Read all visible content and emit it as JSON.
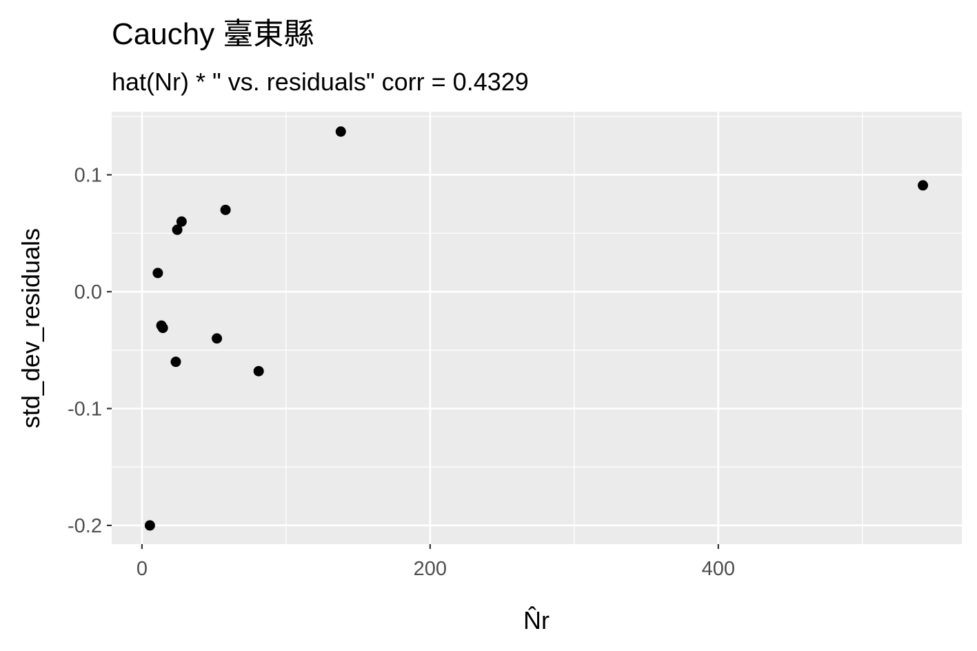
{
  "chart_data": {
    "type": "scatter",
    "title": "Cauchy 臺東縣",
    "subtitle": "hat(Nr) * \"  vs. residuals\" corr = 0.4329",
    "xlabel": "N̂r",
    "ylabel": "std_dev_residuals",
    "xlim": [
      -21,
      569
    ],
    "ylim": [
      -0.216,
      0.154
    ],
    "x_ticks": [
      0,
      200,
      400
    ],
    "x_tick_labels": [
      "0",
      "200",
      "400"
    ],
    "y_ticks": [
      -0.2,
      -0.1,
      0.0,
      0.1
    ],
    "y_tick_labels": [
      "-0.2",
      "-0.1",
      "0.0",
      "0.1"
    ],
    "grid": true,
    "point_color": "#000000",
    "panel_color": "#ebebeb",
    "points": [
      {
        "x": 5.5,
        "y": -0.2
      },
      {
        "x": 11,
        "y": 0.016
      },
      {
        "x": 13.5,
        "y": -0.029
      },
      {
        "x": 14.5,
        "y": -0.031
      },
      {
        "x": 23.5,
        "y": -0.06
      },
      {
        "x": 24.5,
        "y": 0.053
      },
      {
        "x": 27.5,
        "y": 0.06
      },
      {
        "x": 52,
        "y": -0.04
      },
      {
        "x": 58,
        "y": 0.07
      },
      {
        "x": 81,
        "y": -0.068
      },
      {
        "x": 138,
        "y": 0.137
      },
      {
        "x": 542,
        "y": 0.091
      }
    ]
  }
}
